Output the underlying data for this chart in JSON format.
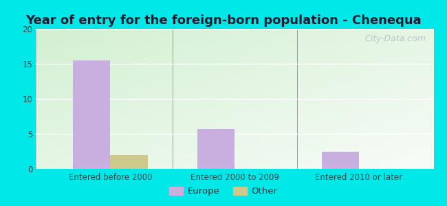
{
  "title": "Year of entry for the foreign-born population - Chenequa",
  "categories": [
    "Entered before 2000",
    "Entered 2000 to 2009",
    "Entered 2010 or later"
  ],
  "europe_values": [
    15.5,
    5.7,
    2.5
  ],
  "other_values": [
    2.0,
    0,
    0
  ],
  "europe_color": "#c9aee0",
  "other_color": "#ccc98a",
  "bar_width": 0.3,
  "ylim": [
    0,
    20
  ],
  "yticks": [
    0,
    5,
    10,
    15,
    20
  ],
  "background_outer": "#00e8e8",
  "title_fontsize": 13,
  "tick_fontsize": 8.5,
  "legend_fontsize": 9.5,
  "watermark_text": "City-Data.com",
  "watermark_color": "#b0bec5",
  "watermark_fontsize": 9
}
